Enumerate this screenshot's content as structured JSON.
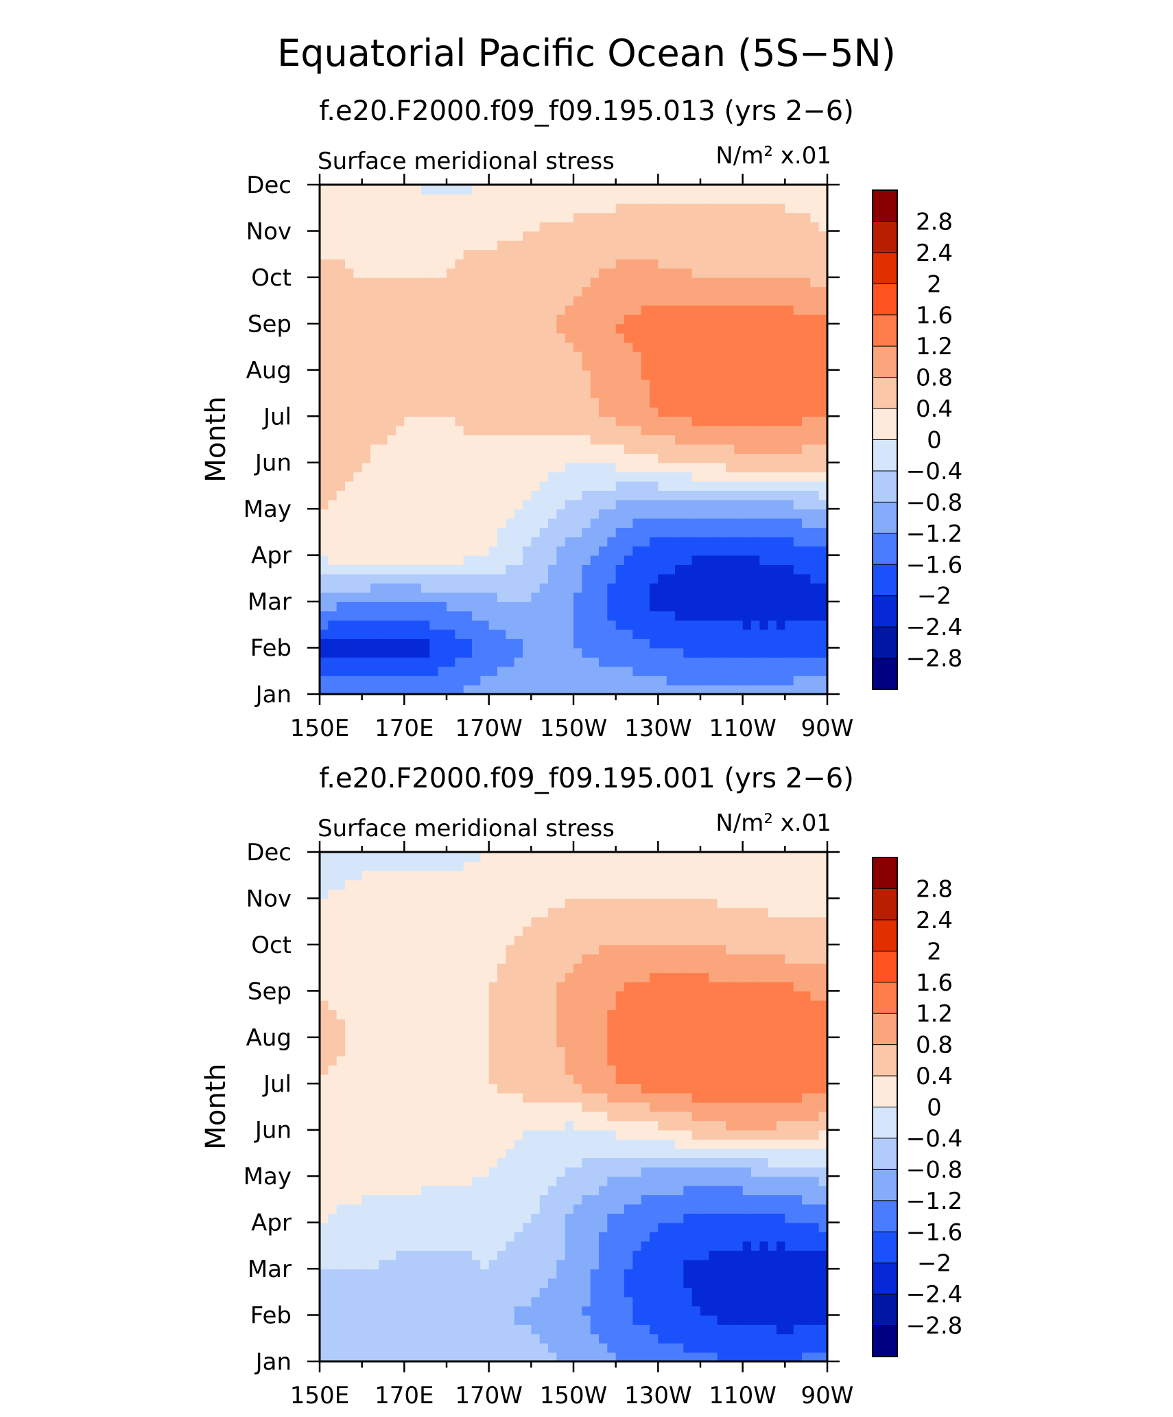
{
  "figure": {
    "title": "Equatorial Pacific Ocean (5S−5N)"
  },
  "chart_data": [
    {
      "type": "heatmap",
      "title": "f.e20.F2000.f09_f09.195.013 (yrs 2−6)",
      "left_label": "Surface meridional stress",
      "units_label": "N/m² x.01",
      "ylabel": "Month",
      "xlabel": "",
      "x_ticks": [
        "150E",
        "170E",
        "170W",
        "150W",
        "130W",
        "110W",
        "90W"
      ],
      "y_ticks": [
        "Jan",
        "Feb",
        "Mar",
        "Apr",
        "May",
        "Jun",
        "Jul",
        "Aug",
        "Sep",
        "Oct",
        "Nov",
        "Dec"
      ],
      "x_range": [
        "150E",
        "90W"
      ],
      "contour_levels": [
        "2.8",
        "2.4",
        "2",
        "1.6",
        "1.2",
        "0.8",
        "0.4",
        "0",
        "−0.4",
        "−0.8",
        "−1.2",
        "−1.6",
        "−2",
        "−2.4",
        "−2.8"
      ],
      "palette": [
        "#fdeadb",
        "#fbc7a9",
        "#fba57c",
        "#fe7d4a",
        "#ff5322",
        "#e22f00",
        "#b81f00",
        "#8a0000",
        "#d5e6fb",
        "#b1ccfb",
        "#84acfb",
        "#4a7cff",
        "#1b51fb",
        "#0529d6",
        "#0017a6",
        "#000082"
      ],
      "legend_colors": [
        "#8a0000",
        "#b81f00",
        "#e22f00",
        "#ff5322",
        "#fe7d4a",
        "#fba57c",
        "#fbc7a9",
        "#fdeadb",
        "#d5e6fb",
        "#b1ccfb",
        "#84acfb",
        "#4a7cff",
        "#1b51fb",
        "#0529d6",
        "#0017a6",
        "#000082"
      ],
      "data_months": [
        "Jan",
        "Feb",
        "Mar",
        "Apr",
        "May",
        "Jun",
        "Jul",
        "Aug",
        "Sep",
        "Oct",
        "Nov",
        "Dec"
      ],
      "data_lons": [
        "150E",
        "160E",
        "170E",
        "180",
        "170W",
        "160W",
        "150W",
        "140W",
        "130W",
        "120W",
        "110W",
        "100W",
        "90W"
      ],
      "values": [
        [
          -1.1,
          -1.2,
          -1.3,
          -1.2,
          -1.0,
          -0.9,
          -0.9,
          -0.9,
          -1.0,
          -1.1,
          -1.1,
          -1.0,
          -0.9
        ],
        [
          -2.1,
          -2.3,
          -2.3,
          -1.9,
          -1.5,
          -1.2,
          -1.2,
          -1.4,
          -1.6,
          -1.7,
          -1.7,
          -1.7,
          -1.7
        ],
        [
          -1.0,
          -1.2,
          -1.3,
          -1.1,
          -0.9,
          -0.8,
          -1.2,
          -1.8,
          -2.1,
          -2.2,
          -2.3,
          -2.3,
          -2.2
        ],
        [
          0.1,
          0.2,
          0.2,
          0.2,
          0.0,
          -0.5,
          -1.0,
          -1.5,
          -1.9,
          -2.0,
          -2.0,
          -1.9,
          -1.7
        ],
        [
          0.4,
          0.3,
          0.3,
          0.3,
          0.2,
          -0.1,
          -0.5,
          -0.9,
          -1.1,
          -1.1,
          -1.1,
          -1.0,
          -0.8
        ],
        [
          0.6,
          0.4,
          0.3,
          0.3,
          0.3,
          0.2,
          0.0,
          0.1,
          0.3,
          0.5,
          0.6,
          0.6,
          0.6
        ],
        [
          0.5,
          0.5,
          0.4,
          0.4,
          0.5,
          0.5,
          0.6,
          0.9,
          1.2,
          1.3,
          1.3,
          1.3,
          1.2
        ],
        [
          0.8,
          0.6,
          0.6,
          0.6,
          0.6,
          0.6,
          0.7,
          1.0,
          1.3,
          1.4,
          1.4,
          1.5,
          1.5
        ],
        [
          0.6,
          0.6,
          0.6,
          0.6,
          0.6,
          0.7,
          0.9,
          1.2,
          1.4,
          1.4,
          1.4,
          1.4,
          1.3
        ],
        [
          0.5,
          0.4,
          0.4,
          0.4,
          0.6,
          0.6,
          0.7,
          0.9,
          0.9,
          0.8,
          0.8,
          0.8,
          0.7
        ],
        [
          0.3,
          0.3,
          0.3,
          0.3,
          0.3,
          0.4,
          0.5,
          0.6,
          0.6,
          0.5,
          0.5,
          0.5,
          0.4
        ],
        [
          0.1,
          0.1,
          0.0,
          -0.1,
          0.0,
          0.1,
          0.2,
          0.2,
          0.3,
          0.3,
          0.3,
          0.3,
          0.3
        ]
      ]
    },
    {
      "type": "heatmap",
      "title": "f.e20.F2000.f09_f09.195.001 (yrs 2−6)",
      "left_label": "Surface meridional stress",
      "units_label": "N/m² x.01",
      "ylabel": "Month",
      "xlabel": "",
      "x_ticks": [
        "150E",
        "170E",
        "170W",
        "150W",
        "130W",
        "110W",
        "90W"
      ],
      "y_ticks": [
        "Jan",
        "Feb",
        "Mar",
        "Apr",
        "May",
        "Jun",
        "Jul",
        "Aug",
        "Sep",
        "Oct",
        "Nov",
        "Dec"
      ],
      "x_range": [
        "150E",
        "90W"
      ],
      "contour_levels": [
        "2.8",
        "2.4",
        "2",
        "1.6",
        "1.2",
        "0.8",
        "0.4",
        "0",
        "−0.4",
        "−0.8",
        "−1.2",
        "−1.6",
        "−2",
        "−2.4",
        "−2.8"
      ],
      "palette": [
        "#fdeadb",
        "#fbc7a9",
        "#fba57c",
        "#fe7d4a",
        "#ff5322",
        "#e22f00",
        "#b81f00",
        "#8a0000",
        "#d5e6fb",
        "#b1ccfb",
        "#84acfb",
        "#4a7cff",
        "#1b51fb",
        "#0529d6",
        "#0017a6",
        "#000082"
      ],
      "legend_colors": [
        "#8a0000",
        "#b81f00",
        "#e22f00",
        "#ff5322",
        "#fe7d4a",
        "#fba57c",
        "#fbc7a9",
        "#fdeadb",
        "#d5e6fb",
        "#b1ccfb",
        "#84acfb",
        "#4a7cff",
        "#1b51fb",
        "#0529d6",
        "#0017a6",
        "#000082"
      ],
      "data_months": [
        "Jan",
        "Feb",
        "Mar",
        "Apr",
        "May",
        "Jun",
        "Jul",
        "Aug",
        "Sep",
        "Oct",
        "Nov",
        "Dec"
      ],
      "data_lons": [
        "150E",
        "160E",
        "170E",
        "180",
        "170W",
        "160W",
        "150W",
        "140W",
        "130W",
        "120W",
        "110W",
        "100W",
        "90W"
      ],
      "values": [
        [
          -0.7,
          -0.6,
          -0.5,
          -0.4,
          -0.4,
          -0.6,
          -0.9,
          -1.2,
          -1.4,
          -1.5,
          -1.6,
          -1.6,
          -1.4
        ],
        [
          -0.6,
          -0.6,
          -0.7,
          -0.7,
          -0.7,
          -0.9,
          -1.1,
          -1.5,
          -1.8,
          -2.0,
          -2.1,
          -2.2,
          -2.1
        ],
        [
          -0.4,
          -0.4,
          -0.5,
          -0.5,
          -0.4,
          -0.6,
          -0.9,
          -1.5,
          -1.9,
          -2.1,
          -2.3,
          -2.3,
          -2.2
        ],
        [
          0.0,
          -0.1,
          -0.2,
          -0.3,
          -0.3,
          -0.4,
          -0.9,
          -1.3,
          -1.6,
          -1.7,
          -1.7,
          -1.7,
          -1.5
        ],
        [
          0.1,
          0.1,
          0.1,
          0.1,
          0.0,
          -0.2,
          -0.5,
          -0.8,
          -1.0,
          -1.0,
          -1.0,
          -0.8,
          -0.7
        ],
        [
          0.3,
          0.2,
          0.2,
          0.1,
          0.1,
          0.0,
          -0.1,
          0.1,
          0.3,
          0.6,
          0.8,
          0.7,
          0.5
        ],
        [
          0.4,
          0.2,
          0.2,
          0.3,
          0.4,
          0.6,
          0.8,
          1.2,
          1.4,
          1.5,
          1.6,
          1.5,
          1.4
        ],
        [
          0.6,
          0.3,
          0.3,
          0.3,
          0.4,
          0.6,
          0.9,
          1.3,
          1.5,
          1.6,
          1.5,
          1.6,
          1.4
        ],
        [
          0.4,
          0.2,
          0.2,
          0.2,
          0.4,
          0.7,
          0.9,
          1.2,
          1.4,
          1.4,
          1.3,
          1.3,
          1.1
        ],
        [
          0.1,
          0.1,
          0.1,
          0.1,
          0.3,
          0.5,
          0.7,
          0.8,
          0.8,
          0.8,
          0.7,
          0.6,
          0.5
        ],
        [
          0.0,
          0.1,
          0.1,
          0.1,
          0.2,
          0.3,
          0.4,
          0.4,
          0.4,
          0.4,
          0.3,
          0.3,
          0.3
        ],
        [
          -0.2,
          -0.1,
          -0.1,
          -0.1,
          0.0,
          0.1,
          0.1,
          0.2,
          0.2,
          0.1,
          0.1,
          0.1,
          0.2
        ]
      ]
    }
  ]
}
